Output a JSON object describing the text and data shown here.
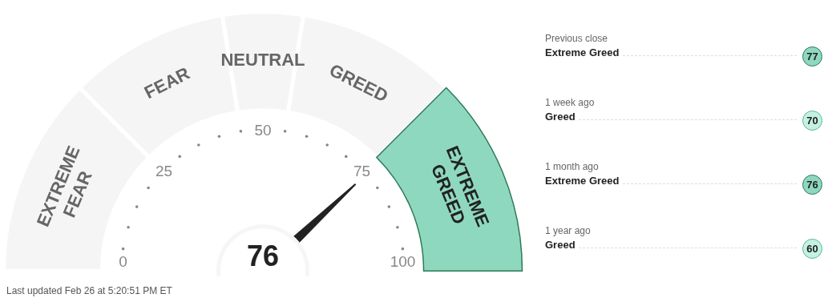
{
  "chart_data": [
    {
      "type": "donut",
      "categories": [
        "EXTREME FEAR",
        "FEAR",
        "NEUTRAL",
        "GREED",
        "EXTREME GREED"
      ],
      "values": [
        25,
        20,
        10,
        20,
        25
      ],
      "colors": [
        "#f5f5f5",
        "#f5f5f5",
        "#f5f5f5",
        "#f5f5f5",
        "#8fd8c0"
      ],
      "needle": "EXTREME GREED",
      "annotations": [
        "76",
        "0",
        "25",
        "50",
        "75",
        "100",
        "Last updated Feb 26 at 5:20:51 PM ET"
      ]
    },
    {
      "type": "other",
      "categories": [
        "Previous close",
        "1 week ago",
        "1 month ago",
        "1 year ago"
      ],
      "values": [
        77,
        70,
        76,
        60
      ],
      "colors": [
        "#8fd8c0",
        "#c4f1e2",
        "#8fd8c0",
        "#c4f1e2"
      ],
      "data_labels": true,
      "annotations": [
        "Extreme Greed",
        "Greed",
        "Extreme Greed",
        "Greed"
      ]
    }
  ]
}
